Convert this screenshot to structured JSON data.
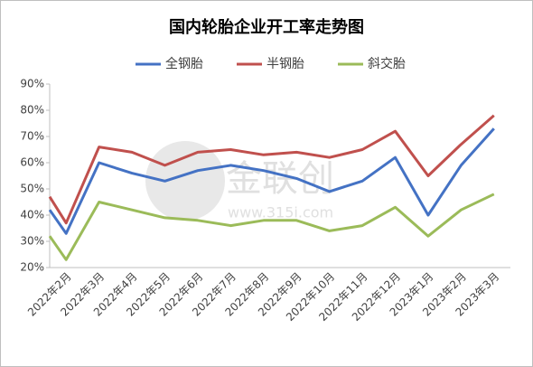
{
  "chart_data": {
    "type": "line",
    "title": "国内轮胎企业开工率走势图",
    "watermark": "金联创",
    "watermark_url": "www.315i.com",
    "categories": [
      null,
      "2022年2月",
      "2022年3月",
      "2022年4月",
      "2022年5月",
      "2022年6月",
      "2022年7月",
      "2022年8月",
      "2022年9月",
      "2022年10月",
      "2022年11月",
      "2022年12月",
      "2023年1月",
      "2023年2月",
      "2023年3月"
    ],
    "series": [
      {
        "name": "全钢胎",
        "color": "#4472c4",
        "values": [
          42,
          33,
          60,
          56,
          53,
          57,
          59,
          57,
          54,
          49,
          53,
          62,
          40,
          59,
          73
        ]
      },
      {
        "name": "半钢胎",
        "color": "#c0504d",
        "values": [
          47,
          37,
          66,
          64,
          59,
          64,
          65,
          63,
          64,
          62,
          65,
          72,
          55,
          67,
          78
        ]
      },
      {
        "name": "斜交胎",
        "color": "#9bbb59",
        "values": [
          32,
          23,
          45,
          42,
          39,
          38,
          36,
          38,
          38,
          34,
          36,
          43,
          32,
          42,
          48
        ]
      }
    ],
    "ylim": [
      20,
      90
    ],
    "yticks": [
      {
        "value": 20,
        "label": "20%"
      },
      {
        "value": 30,
        "label": "30%"
      },
      {
        "value": 40,
        "label": "40%"
      },
      {
        "value": 50,
        "label": "50%"
      },
      {
        "value": 60,
        "label": "60%"
      },
      {
        "value": 70,
        "label": "70%"
      },
      {
        "value": 80,
        "label": "80%"
      },
      {
        "value": 90,
        "label": "90%"
      }
    ],
    "legend": "top"
  }
}
